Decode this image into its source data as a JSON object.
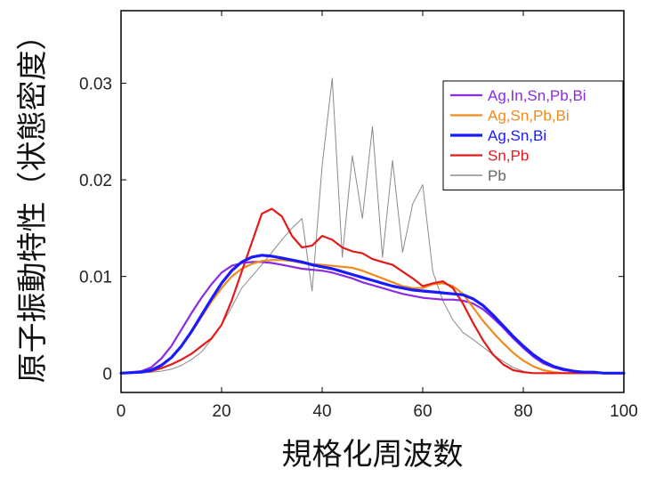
{
  "chart_data": {
    "type": "line",
    "title": "",
    "xlabel": "規格化周波数",
    "ylabel": "原子振動特性（状態密度）",
    "xlim": [
      0,
      100
    ],
    "ylim": [
      -0.002,
      0.0375
    ],
    "xticks": [
      0,
      20,
      40,
      60,
      80,
      100
    ],
    "xtick_labels": [
      "0",
      "20",
      "40",
      "60",
      "80",
      "100"
    ],
    "yticks": [
      0,
      0.01,
      0.02,
      0.03
    ],
    "ytick_labels": [
      "0",
      "0.01",
      "0.02",
      "0.03"
    ],
    "grid": false,
    "legend_position": "top-right",
    "series": [
      {
        "name": "Ag,In,Sn,Pb,Bi",
        "color": "#8a2be2",
        "width": 2.2,
        "x": [
          0,
          4,
          6,
          8,
          10,
          12,
          14,
          16,
          18,
          20,
          22,
          24,
          26,
          28,
          30,
          32,
          34,
          36,
          38,
          40,
          42,
          44,
          46,
          48,
          50,
          52,
          54,
          56,
          58,
          60,
          62,
          64,
          66,
          68,
          70,
          72,
          74,
          76,
          78,
          80,
          82,
          84,
          86,
          88,
          90,
          92,
          94,
          96,
          98,
          100
        ],
        "y": [
          0,
          0.0002,
          0.0006,
          0.0015,
          0.0028,
          0.0045,
          0.0062,
          0.0078,
          0.0092,
          0.0104,
          0.0111,
          0.0114,
          0.0115,
          0.0115,
          0.0114,
          0.0112,
          0.011,
          0.0108,
          0.0107,
          0.0106,
          0.0104,
          0.0101,
          0.0098,
          0.0094,
          0.0091,
          0.0088,
          0.0085,
          0.0082,
          0.008,
          0.0078,
          0.0077,
          0.0076,
          0.0076,
          0.0075,
          0.0072,
          0.0066,
          0.0057,
          0.0047,
          0.0036,
          0.0026,
          0.0017,
          0.001,
          0.0006,
          0.0003,
          0.0002,
          0.0001,
          0.0001,
          0,
          0,
          0
        ]
      },
      {
        "name": "Ag,Sn,Pb,Bi",
        "color": "#f08a1c",
        "width": 2.2,
        "x": [
          0,
          4,
          6,
          8,
          10,
          12,
          14,
          16,
          18,
          20,
          22,
          24,
          26,
          28,
          30,
          32,
          34,
          36,
          38,
          40,
          42,
          44,
          46,
          48,
          50,
          52,
          54,
          56,
          58,
          60,
          62,
          64,
          66,
          68,
          70,
          72,
          74,
          76,
          78,
          80,
          82,
          84,
          86,
          88,
          90,
          92,
          94,
          96,
          98,
          100
        ],
        "y": [
          0,
          0.0001,
          0.0003,
          0.0008,
          0.0016,
          0.0028,
          0.0042,
          0.0058,
          0.0074,
          0.0088,
          0.01,
          0.0108,
          0.0113,
          0.0116,
          0.0117,
          0.0117,
          0.0116,
          0.0114,
          0.0113,
          0.0112,
          0.0111,
          0.011,
          0.0109,
          0.0106,
          0.0102,
          0.0098,
          0.0094,
          0.009,
          0.0088,
          0.0088,
          0.0092,
          0.0093,
          0.009,
          0.0082,
          0.0068,
          0.0054,
          0.0042,
          0.0031,
          0.0021,
          0.0013,
          0.0007,
          0.0003,
          0.0001,
          0,
          0,
          0,
          0,
          0,
          0,
          0
        ]
      },
      {
        "name": "Ag,Sn,Bi",
        "color": "#1a1aff",
        "width": 3.2,
        "x": [
          0,
          4,
          6,
          8,
          10,
          12,
          14,
          16,
          18,
          20,
          22,
          24,
          26,
          28,
          30,
          32,
          34,
          36,
          38,
          40,
          42,
          44,
          46,
          48,
          50,
          52,
          54,
          56,
          58,
          60,
          62,
          64,
          66,
          68,
          70,
          72,
          74,
          76,
          78,
          80,
          82,
          84,
          86,
          88,
          90,
          92,
          94,
          96,
          98,
          100
        ],
        "y": [
          0,
          0.0001,
          0.0003,
          0.0008,
          0.0016,
          0.0028,
          0.0043,
          0.006,
          0.0077,
          0.0093,
          0.0106,
          0.0115,
          0.012,
          0.0122,
          0.0121,
          0.0119,
          0.0117,
          0.0115,
          0.0112,
          0.011,
          0.0108,
          0.0105,
          0.0102,
          0.0099,
          0.0096,
          0.0093,
          0.009,
          0.0088,
          0.0086,
          0.0085,
          0.0084,
          0.0083,
          0.0082,
          0.0081,
          0.0077,
          0.007,
          0.006,
          0.0049,
          0.0038,
          0.0028,
          0.0019,
          0.0012,
          0.0007,
          0.0004,
          0.0002,
          0.0001,
          0.0001,
          0,
          0,
          0
        ]
      },
      {
        "name": "Sn,Pb",
        "color": "#e31a1a",
        "width": 2.2,
        "x": [
          0,
          4,
          6,
          8,
          10,
          12,
          14,
          16,
          18,
          20,
          22,
          24,
          26,
          28,
          30,
          32,
          34,
          36,
          38,
          40,
          42,
          44,
          46,
          48,
          50,
          52,
          54,
          56,
          58,
          60,
          62,
          64,
          66,
          68,
          70,
          72,
          74,
          76,
          78,
          80,
          82,
          84,
          86,
          88,
          90,
          92,
          94,
          96,
          98,
          100
        ],
        "y": [
          0,
          0.0001,
          0.0002,
          0.0005,
          0.0009,
          0.0014,
          0.002,
          0.0028,
          0.0036,
          0.005,
          0.0075,
          0.0105,
          0.0135,
          0.0165,
          0.017,
          0.0162,
          0.0142,
          0.013,
          0.0132,
          0.0142,
          0.0138,
          0.013,
          0.0126,
          0.0124,
          0.0118,
          0.0115,
          0.0112,
          0.0105,
          0.0098,
          0.009,
          0.0093,
          0.0095,
          0.0088,
          0.0072,
          0.0052,
          0.0034,
          0.0019,
          0.0009,
          0.0003,
          0.0001,
          0,
          0,
          0,
          0,
          0,
          0,
          0,
          0,
          0,
          0
        ]
      },
      {
        "name": "Pb",
        "color": "#8a8a8a",
        "width": 1,
        "x": [
          0,
          4,
          6,
          8,
          10,
          12,
          14,
          16,
          18,
          20,
          22,
          24,
          26,
          28,
          30,
          32,
          34,
          36,
          38,
          40,
          42,
          44,
          46,
          48,
          50,
          52,
          54,
          56,
          58,
          60,
          62,
          64,
          66,
          68,
          70,
          72,
          74,
          76,
          78,
          80,
          82,
          84,
          86,
          88,
          90,
          92,
          94,
          96,
          98,
          100
        ],
        "y": [
          0,
          0,
          0.0001,
          0.0002,
          0.0004,
          0.0008,
          0.0014,
          0.0022,
          0.0035,
          0.005,
          0.0068,
          0.0088,
          0.01,
          0.0112,
          0.0125,
          0.0138,
          0.015,
          0.016,
          0.0085,
          0.0215,
          0.0305,
          0.012,
          0.0225,
          0.016,
          0.0255,
          0.012,
          0.022,
          0.0125,
          0.0175,
          0.0195,
          0.0105,
          0.0075,
          0.0055,
          0.0042,
          0.0035,
          0.0027,
          0.0019,
          0.0012,
          0.0006,
          0.0002,
          0,
          0,
          0,
          0,
          0,
          0,
          0,
          0,
          0,
          0
        ]
      }
    ]
  }
}
